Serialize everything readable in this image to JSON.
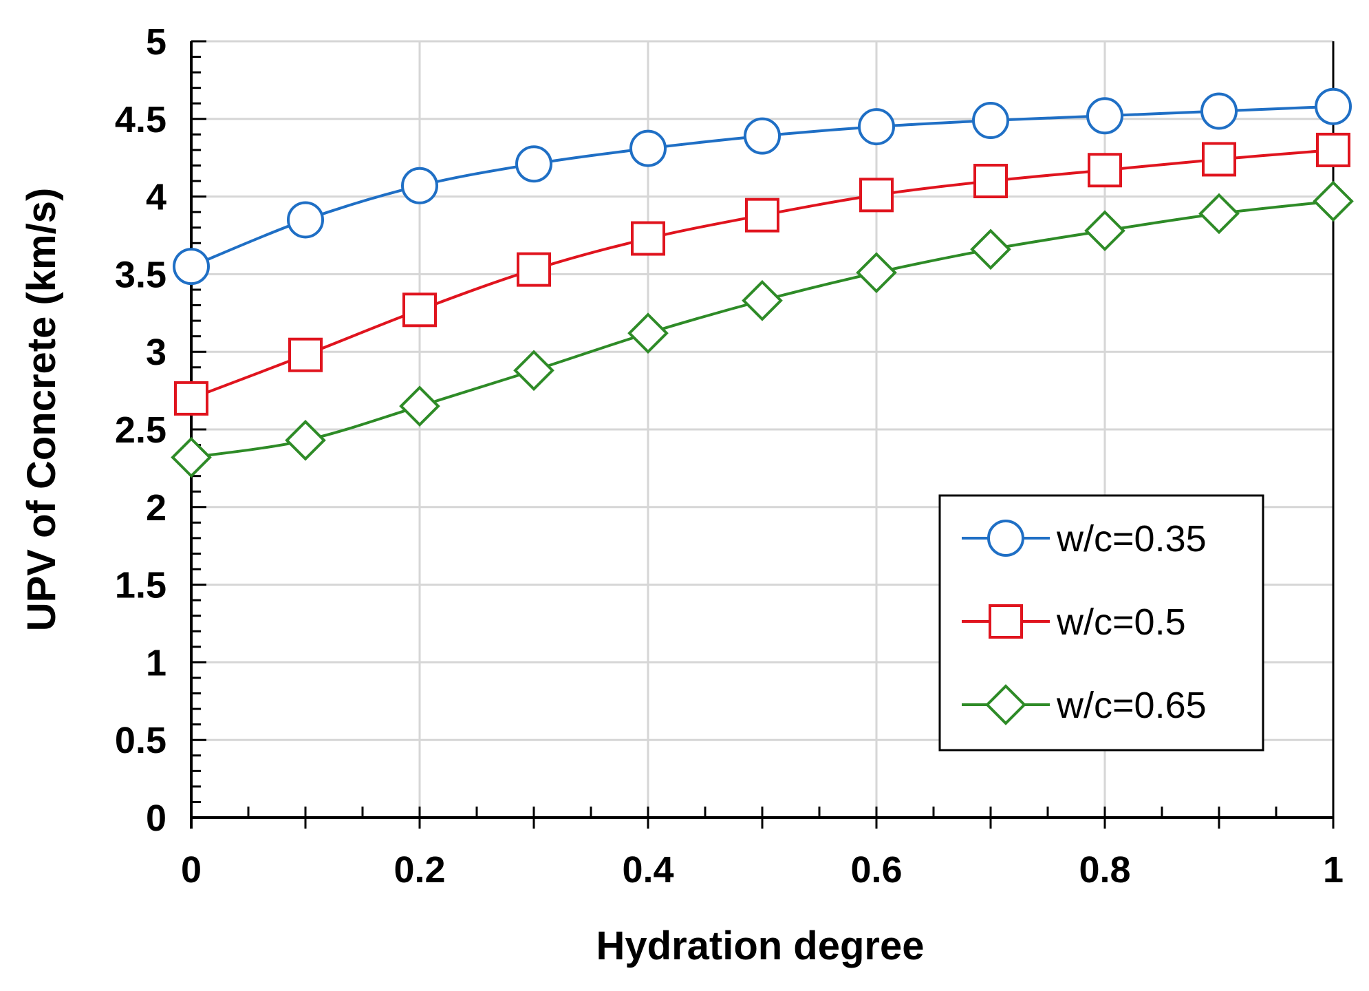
{
  "chart_data": {
    "type": "line",
    "title": "",
    "xlabel": "Hydration degree",
    "ylabel": "UPV of Concrete (km/s)",
    "xlim": [
      0,
      1
    ],
    "ylim": [
      0,
      5
    ],
    "grid": true,
    "legend_position": "bottom-right",
    "x": [
      0,
      0.1,
      0.2,
      0.3,
      0.4,
      0.5,
      0.6,
      0.7,
      0.8,
      0.9,
      1.0
    ],
    "x_tick_labels": [
      "0",
      "0.2",
      "0.4",
      "0.6",
      "0.8",
      "1"
    ],
    "y_tick_labels": [
      "0",
      "0.5",
      "1",
      "1.5",
      "2",
      "2.5",
      "3",
      "3.5",
      "4",
      "4.5",
      "5"
    ],
    "series": [
      {
        "name": "w/c=0.35",
        "color": "#1f6fc5",
        "marker": "circle",
        "values": [
          3.55,
          3.85,
          4.07,
          4.21,
          4.31,
          4.39,
          4.45,
          4.49,
          4.52,
          4.55,
          4.58
        ]
      },
      {
        "name": "w/c=0.5",
        "color": "#e0141e",
        "marker": "square",
        "values": [
          2.7,
          2.98,
          3.27,
          3.53,
          3.73,
          3.88,
          4.01,
          4.1,
          4.17,
          4.24,
          4.3
        ]
      },
      {
        "name": "w/c=0.65",
        "color": "#2e8b27",
        "marker": "diamond",
        "values": [
          2.32,
          2.43,
          2.65,
          2.88,
          3.12,
          3.33,
          3.51,
          3.66,
          3.78,
          3.89,
          3.97
        ]
      }
    ]
  }
}
